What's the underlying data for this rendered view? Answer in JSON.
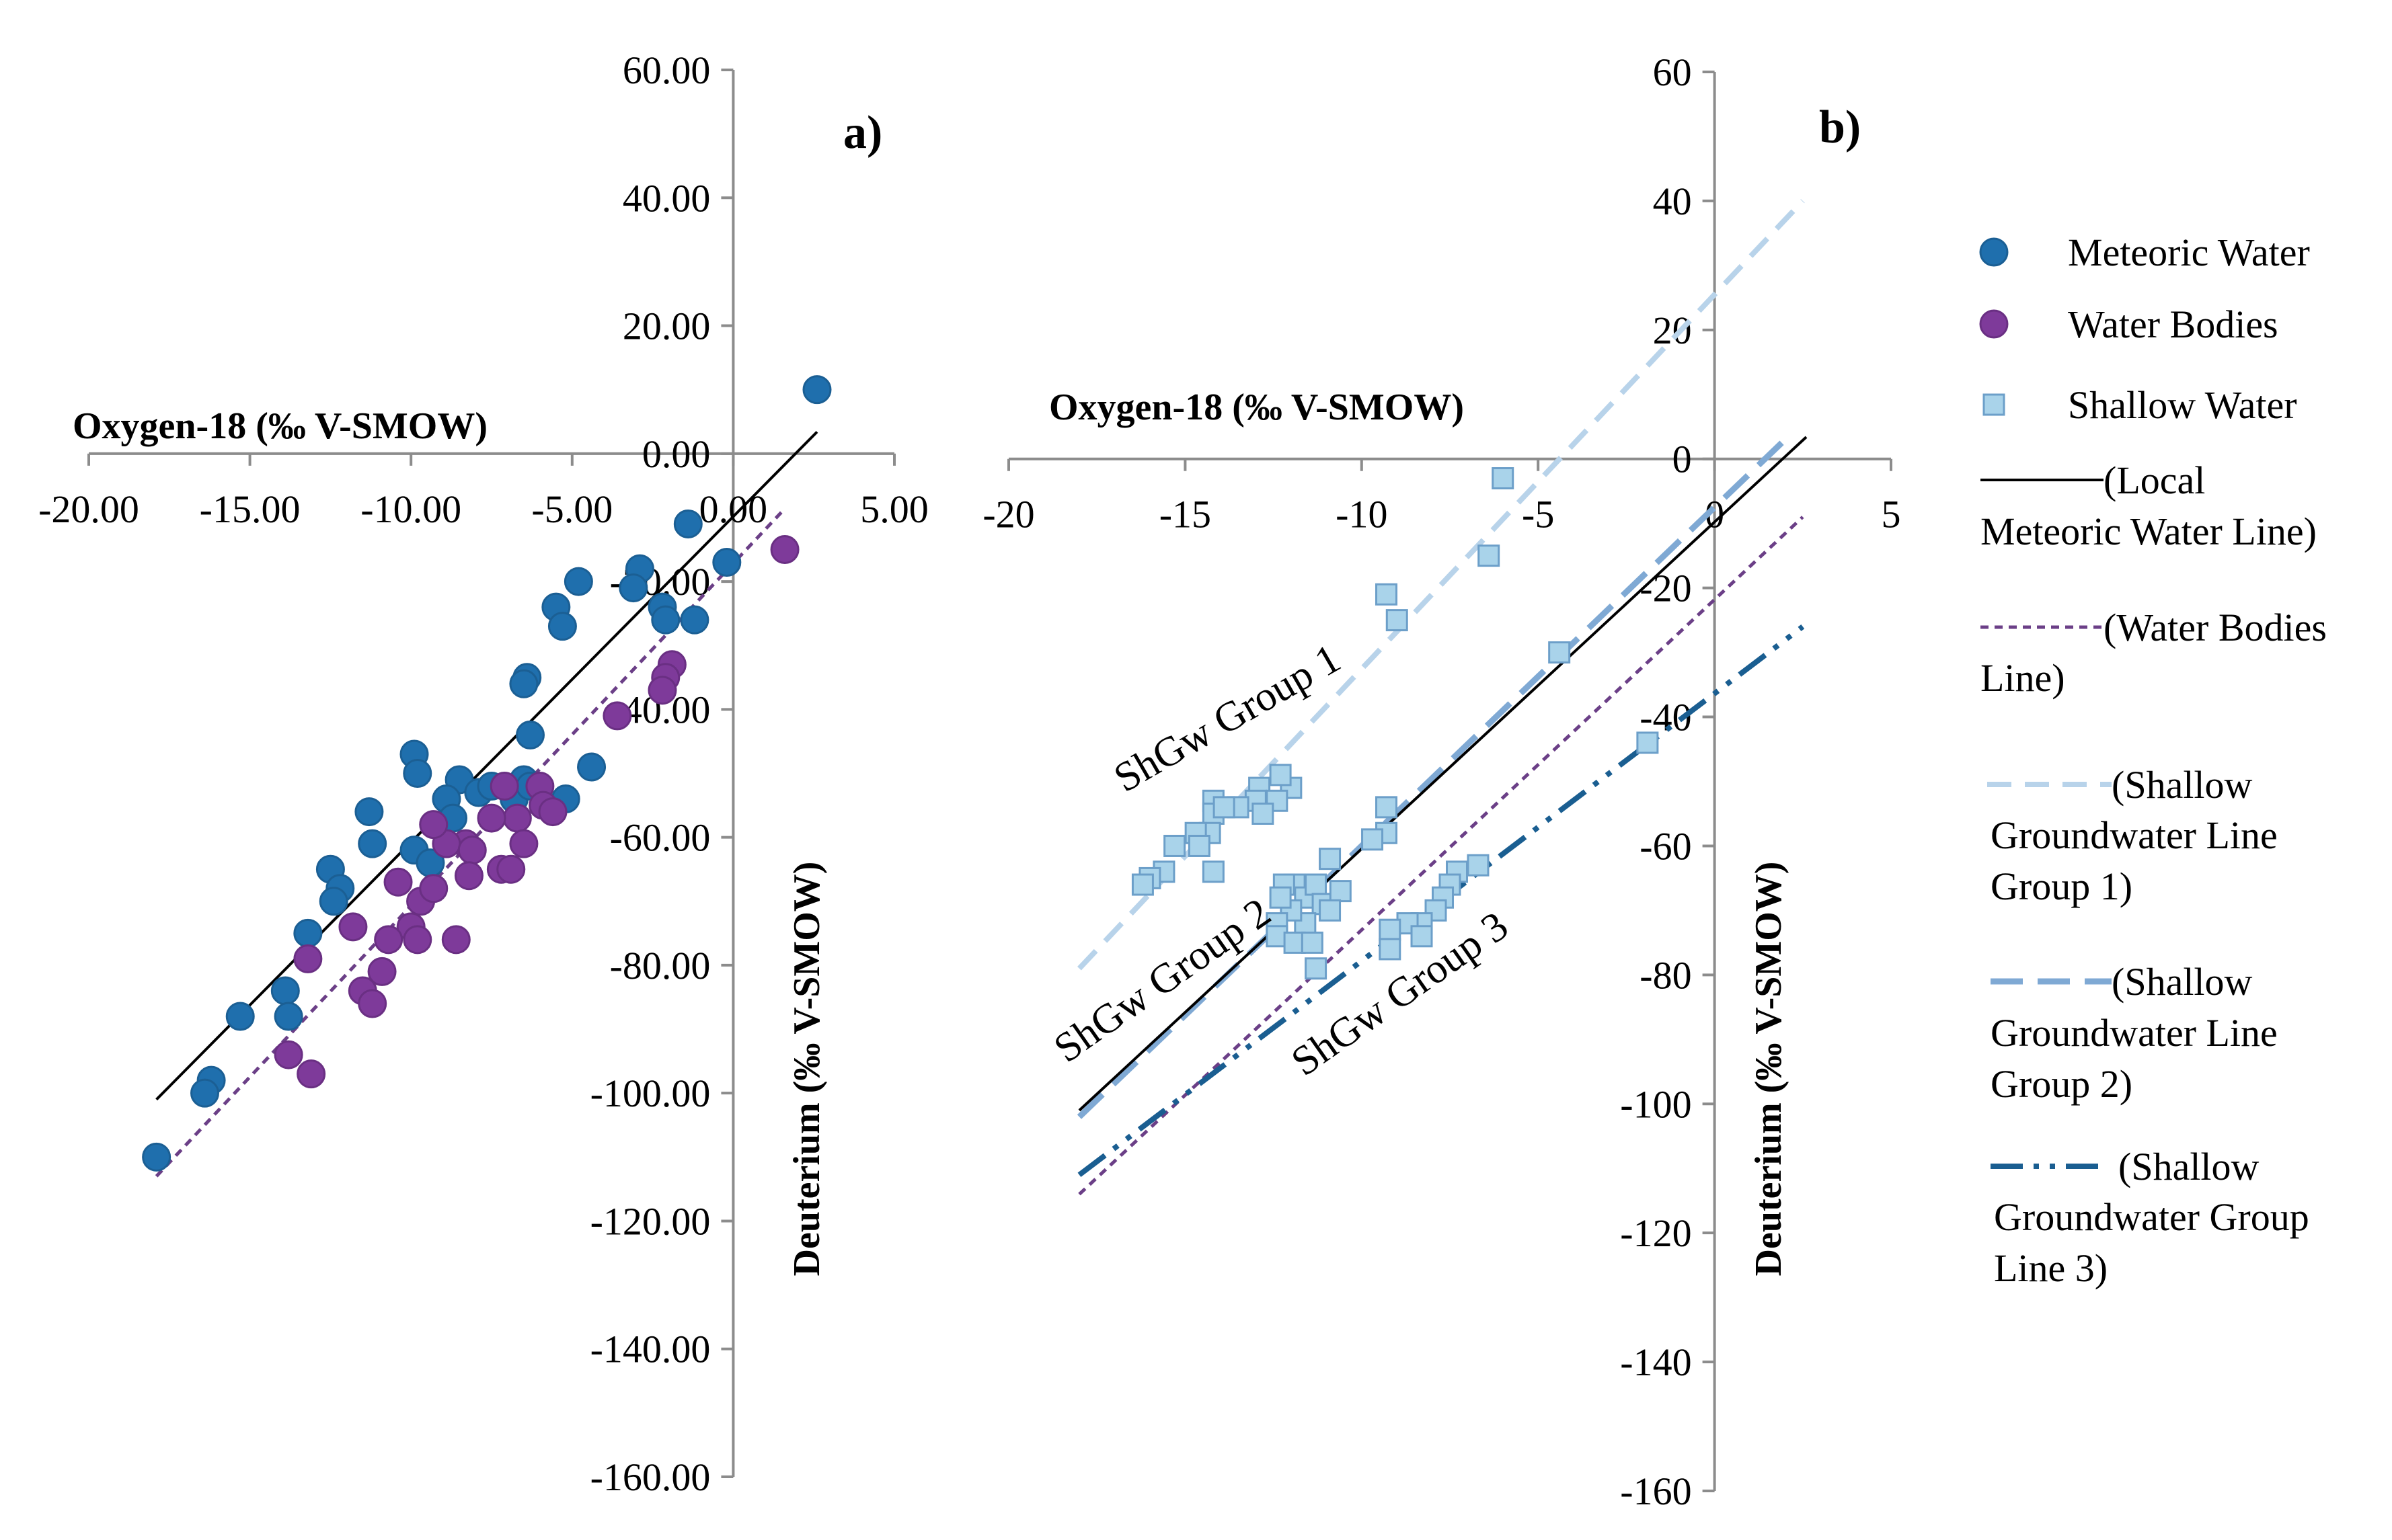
{
  "colors": {
    "meteoric": "#1f6fad",
    "meteoric_edge": "#1b5f94",
    "water_bodies": "#7e3a9a",
    "water_bodies_edge": "#6a2f83",
    "shallow_fill": "#a9d3ea",
    "shallow_edge": "#6c9fc9",
    "lmwl": "#000000",
    "wbl": "#6b3f87",
    "sgl1": "#b8d3ea",
    "sgl2": "#7fa9d4",
    "sgl3": "#1a5e91",
    "axis": "#8c8c8c"
  },
  "chart_data": [
    {
      "panel": "a)",
      "type": "scatter",
      "xlabel": "Oxygen-18 (‰ V-SMOW)",
      "ylabel": "Deuterium (‰ V-SMOW)",
      "xlim": [
        -20,
        5
      ],
      "ylim": [
        -160,
        60
      ],
      "x_ticks": [
        -20,
        -15,
        -10,
        -5,
        0,
        5
      ],
      "y_ticks": [
        60,
        40,
        20,
        0,
        -20,
        -40,
        -60,
        -80,
        -100,
        -120,
        -140,
        -160
      ],
      "x_tick_labels": [
        "-20.00",
        "-15.00",
        "-10.00",
        "-5.00",
        "0.00",
        "5.00"
      ],
      "y_tick_labels": [
        "60.00",
        "40.00",
        "20.00",
        "0.00",
        "-20.00",
        "-40.00",
        "-60.00",
        "-80.00",
        "-100.00",
        "-120.00",
        "-140.00",
        "-160.00"
      ],
      "series": [
        {
          "name": "Meteoric Water",
          "marker": "circle",
          "points": [
            [
              2.6,
              10
            ],
            [
              -1.4,
              -11
            ],
            [
              -0.2,
              -17
            ],
            [
              -2.9,
              -18
            ],
            [
              -3.1,
              -21
            ],
            [
              -4.8,
              -20
            ],
            [
              -2.2,
              -24
            ],
            [
              -2.1,
              -26
            ],
            [
              -1.2,
              -26
            ],
            [
              -5.5,
              -24
            ],
            [
              -5.3,
              -27
            ],
            [
              -6.4,
              -35
            ],
            [
              -6.5,
              -36
            ],
            [
              -6.3,
              -44
            ],
            [
              -4.4,
              -49
            ],
            [
              -9.9,
              -47
            ],
            [
              -9.8,
              -50
            ],
            [
              -8.5,
              -51
            ],
            [
              -7.9,
              -53
            ],
            [
              -7.5,
              -52
            ],
            [
              -8.9,
              -54
            ],
            [
              -8.7,
              -57
            ],
            [
              -6.8,
              -54
            ],
            [
              -6.5,
              -51
            ],
            [
              -6.3,
              -52
            ],
            [
              -5.2,
              -54
            ],
            [
              -11.3,
              -56
            ],
            [
              -11.2,
              -61
            ],
            [
              -9.9,
              -62
            ],
            [
              -9.4,
              -64
            ],
            [
              -12.5,
              -65
            ],
            [
              -12.2,
              -68
            ],
            [
              -12.4,
              -70
            ],
            [
              -13.2,
              -75
            ],
            [
              -13.9,
              -84
            ],
            [
              -13.8,
              -88
            ],
            [
              -15.3,
              -88
            ],
            [
              -16.2,
              -98
            ],
            [
              -16.4,
              -100
            ],
            [
              -17.9,
              -110
            ]
          ],
          "color": "#1f6fad"
        },
        {
          "name": "Water Bodies",
          "marker": "circle",
          "points": [
            [
              1.6,
              -15
            ],
            [
              -1.9,
              -33
            ],
            [
              -2.1,
              -35
            ],
            [
              -2.2,
              -37
            ],
            [
              -3.6,
              -41
            ],
            [
              -7.1,
              -52
            ],
            [
              -6.0,
              -52
            ],
            [
              -6.7,
              -57
            ],
            [
              -5.9,
              -55
            ],
            [
              -5.6,
              -56
            ],
            [
              -6.5,
              -61
            ],
            [
              -7.5,
              -57
            ],
            [
              -8.3,
              -61
            ],
            [
              -8.9,
              -61
            ],
            [
              -9.3,
              -58
            ],
            [
              -8.1,
              -62
            ],
            [
              -8.2,
              -66
            ],
            [
              -7.2,
              -65
            ],
            [
              -6.9,
              -65
            ],
            [
              -10.4,
              -67
            ],
            [
              -9.7,
              -70
            ],
            [
              -9.3,
              -68
            ],
            [
              -10.0,
              -74
            ],
            [
              -9.8,
              -76
            ],
            [
              -10.7,
              -76
            ],
            [
              -11.8,
              -74
            ],
            [
              -11.5,
              -84
            ],
            [
              -11.2,
              -86
            ],
            [
              -10.9,
              -81
            ],
            [
              -8.6,
              -76
            ],
            [
              -13.2,
              -79
            ],
            [
              -13.8,
              -94
            ],
            [
              -13.1,
              -97
            ]
          ],
          "color": "#7e3a9a"
        }
      ],
      "lines": [
        {
          "name": "Local Meteoric Water Line",
          "x": [
            -17.9,
            2.6
          ],
          "y": [
            -101,
            3.4
          ],
          "style": "solid"
        },
        {
          "name": "Water Bodies Line",
          "x": [
            -17.9,
            1.6
          ],
          "y": [
            -113,
            -8.6
          ],
          "style": "dotted"
        }
      ]
    },
    {
      "panel": "b)",
      "type": "scatter",
      "xlabel": "Oxygen-18 (‰ V-SMOW)",
      "ylabel": "Deuterium (‰ V-SMOW)",
      "xlim": [
        -20,
        5
      ],
      "ylim": [
        -160,
        60
      ],
      "x_ticks": [
        -20,
        -15,
        -10,
        -5,
        0,
        5
      ],
      "y_ticks": [
        60,
        40,
        20,
        0,
        -20,
        -40,
        -60,
        -80,
        -100,
        -120,
        -140,
        -160
      ],
      "x_tick_labels": [
        "-20",
        "-15",
        "-10",
        "-5",
        "0",
        "5"
      ],
      "y_tick_labels": [
        "60",
        "40",
        "20",
        "0",
        "-20",
        "-40",
        "-60",
        "-80",
        "-100",
        "-120",
        "-140",
        "-160"
      ],
      "series": [
        {
          "name": "Shallow Water",
          "marker": "square",
          "points": [
            [
              -6.0,
              -3
            ],
            [
              -6.4,
              -15
            ],
            [
              -9.3,
              -21
            ],
            [
              -9.0,
              -25
            ],
            [
              -4.4,
              -30
            ],
            [
              -1.9,
              -44
            ],
            [
              -12.0,
              -51
            ],
            [
              -12.3,
              -49
            ],
            [
              -12.9,
              -51
            ],
            [
              -13.0,
              -53
            ],
            [
              -12.4,
              -53
            ],
            [
              -12.8,
              -55
            ],
            [
              -13.5,
              -54
            ],
            [
              -14.2,
              -53
            ],
            [
              -14.2,
              -55
            ],
            [
              -13.9,
              -54
            ],
            [
              -14.3,
              -58
            ],
            [
              -14.7,
              -58
            ],
            [
              -14.6,
              -60
            ],
            [
              -15.3,
              -60
            ],
            [
              -15.6,
              -64
            ],
            [
              -16.0,
              -65
            ],
            [
              -16.2,
              -66
            ],
            [
              -14.2,
              -64
            ],
            [
              -9.3,
              -54
            ],
            [
              -9.3,
              -58
            ],
            [
              -9.7,
              -59
            ],
            [
              -10.9,
              -62
            ],
            [
              -11.9,
              -66
            ],
            [
              -12.2,
              -66
            ],
            [
              -11.6,
              -68
            ],
            [
              -11.3,
              -66
            ],
            [
              -11.1,
              -69
            ],
            [
              -10.6,
              -67
            ],
            [
              -10.9,
              -70
            ],
            [
              -11.6,
              -72
            ],
            [
              -12.0,
              -70
            ],
            [
              -12.3,
              -68
            ],
            [
              -12.4,
              -72
            ],
            [
              -12.4,
              -74
            ],
            [
              -11.9,
              -75
            ],
            [
              -11.4,
              -75
            ],
            [
              -11.3,
              -79
            ],
            [
              -6.7,
              -63
            ],
            [
              -7.3,
              -64
            ],
            [
              -7.5,
              -66
            ],
            [
              -7.7,
              -68
            ],
            [
              -7.9,
              -70
            ],
            [
              -8.3,
              -72
            ],
            [
              -8.7,
              -72
            ],
            [
              -8.3,
              -74
            ],
            [
              -9.2,
              -73
            ],
            [
              -9.2,
              -76
            ]
          ],
          "color": "#a9d3ea"
        }
      ],
      "lines": [
        {
          "name": "Shallow Groundwater Line Group 1",
          "x": [
            -18,
            2.5
          ],
          "y": [
            -79,
            40
          ],
          "style": "dashed"
        },
        {
          "name": "Shallow Groundwater Line Group 2",
          "x": [
            -18,
            2.0
          ],
          "y": [
            -102,
            3
          ],
          "style": "dashed"
        },
        {
          "name": "Local Meteoric Water Line",
          "x": [
            -18,
            2.6
          ],
          "y": [
            -101,
            3.4
          ],
          "style": "solid"
        },
        {
          "name": "Water Bodies Line",
          "x": [
            -18,
            2.5
          ],
          "y": [
            -114,
            -9
          ],
          "style": "dotted"
        },
        {
          "name": "Shallow Groundwater Group Line 3",
          "x": [
            -18,
            2.5
          ],
          "y": [
            -111,
            -26
          ],
          "style": "dashdotdot"
        }
      ],
      "annotations": [
        "ShGw Group 1",
        "ShGw Group 2",
        "ShGw Group 3"
      ]
    }
  ],
  "legend": {
    "placement": "right",
    "items": [
      {
        "key": "meteoric",
        "label_lines": [
          "Meteoric Water"
        ]
      },
      {
        "key": "water_bodies",
        "label_lines": [
          "Water Bodies"
        ]
      },
      {
        "key": "shallow",
        "label_lines": [
          "Shallow Water"
        ]
      },
      {
        "key": "lmwl",
        "label_lines": [
          "(Local",
          "Meteoric Water Line)"
        ]
      },
      {
        "key": "wbl",
        "label_lines": [
          "(Water Bodies",
          "Line)"
        ]
      },
      {
        "key": "sgl1",
        "label_lines": [
          "(Shallow",
          "Groundwater Line",
          "Group 1)"
        ]
      },
      {
        "key": "sgl2",
        "label_lines": [
          "(Shallow",
          "Groundwater Line",
          "Group 2)"
        ]
      },
      {
        "key": "sgl3",
        "label_lines": [
          "(Shallow",
          "Groundwater Group",
          "Line 3)"
        ]
      }
    ]
  }
}
